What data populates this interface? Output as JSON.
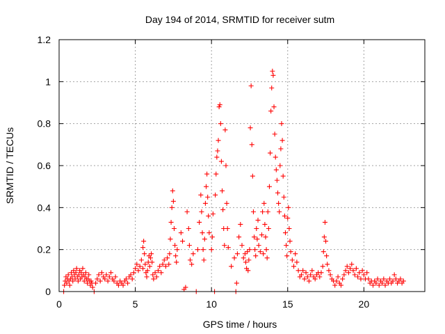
{
  "chart_data": {
    "type": "scatter",
    "title": "Day 194 of 2014, SRMTID for receiver sutm",
    "xlabel": "GPS time / hours",
    "ylabel": "SRMTID / TECUs",
    "xlim": [
      0,
      24
    ],
    "ylim": [
      0,
      1.2
    ],
    "xticks": [
      0,
      5,
      10,
      15,
      20
    ],
    "xtick_labels": [
      "0",
      "5",
      "10",
      "15",
      "20"
    ],
    "yticks": [
      0,
      0.2,
      0.4,
      0.6,
      0.8,
      1,
      1.2
    ],
    "ytick_labels": [
      "0",
      "0.2",
      "0.4",
      "0.6",
      "0.8",
      "1",
      "1.2"
    ],
    "grid": true,
    "marker": "+",
    "color": "#ff0000",
    "series": [
      {
        "name": "SRMTID",
        "points": [
          [
            0.3,
            0.0
          ],
          [
            0.35,
            0.03
          ],
          [
            0.4,
            0.05
          ],
          [
            0.45,
            0.07
          ],
          [
            0.5,
            0.04
          ],
          [
            0.55,
            0.06
          ],
          [
            0.6,
            0.08
          ],
          [
            0.65,
            0.05
          ],
          [
            0.7,
            0.03
          ],
          [
            0.75,
            0.06
          ],
          [
            0.8,
            0.09
          ],
          [
            0.85,
            0.07
          ],
          [
            0.9,
            0.05
          ],
          [
            0.95,
            0.1
          ],
          [
            1.0,
            0.08
          ],
          [
            1.05,
            0.06
          ],
          [
            1.1,
            0.09
          ],
          [
            1.15,
            0.11
          ],
          [
            1.2,
            0.07
          ],
          [
            1.25,
            0.05
          ],
          [
            1.3,
            0.08
          ],
          [
            1.35,
            0.1
          ],
          [
            1.4,
            0.06
          ],
          [
            1.45,
            0.09
          ],
          [
            1.5,
            0.07
          ],
          [
            1.55,
            0.11
          ],
          [
            1.6,
            0.08
          ],
          [
            1.65,
            0.05
          ],
          [
            1.7,
            0.07
          ],
          [
            1.75,
            0.09
          ],
          [
            1.8,
            0.06
          ],
          [
            1.85,
            0.04
          ],
          [
            1.9,
            0.06
          ],
          [
            1.95,
            0.08
          ],
          [
            2.0,
            0.05
          ],
          [
            2.05,
            0.03
          ],
          [
            2.1,
            0.05
          ],
          [
            2.15,
            0.04
          ],
          [
            2.2,
            0.02
          ],
          [
            2.3,
            0.0
          ],
          [
            2.4,
            0.04
          ],
          [
            2.5,
            0.06
          ],
          [
            2.6,
            0.08
          ],
          [
            2.7,
            0.05
          ],
          [
            2.8,
            0.09
          ],
          [
            2.9,
            0.07
          ],
          [
            3.0,
            0.06
          ],
          [
            3.1,
            0.08
          ],
          [
            3.2,
            0.05
          ],
          [
            3.3,
            0.07
          ],
          [
            3.4,
            0.09
          ],
          [
            3.5,
            0.06
          ],
          [
            3.6,
            0.05
          ],
          [
            3.7,
            0.07
          ],
          [
            3.8,
            0.04
          ],
          [
            3.9,
            0.03
          ],
          [
            4.0,
            0.05
          ],
          [
            4.1,
            0.04
          ],
          [
            4.2,
            0.03
          ],
          [
            4.3,
            0.05
          ],
          [
            4.4,
            0.06
          ],
          [
            4.5,
            0.04
          ],
          [
            4.6,
            0.07
          ],
          [
            4.7,
            0.08
          ],
          [
            4.8,
            0.06
          ],
          [
            4.9,
            0.09
          ],
          [
            5.0,
            0.11
          ],
          [
            5.1,
            0.13
          ],
          [
            5.2,
            0.1
          ],
          [
            5.3,
            0.12
          ],
          [
            5.4,
            0.15
          ],
          [
            5.5,
            0.11
          ],
          [
            5.5,
            0.21
          ],
          [
            5.55,
            0.24
          ],
          [
            5.6,
            0.18
          ],
          [
            5.65,
            0.13
          ],
          [
            5.7,
            0.09
          ],
          [
            5.75,
            0.07
          ],
          [
            5.8,
            0.1
          ],
          [
            5.85,
            0.14
          ],
          [
            5.9,
            0.17
          ],
          [
            5.95,
            0.12
          ],
          [
            6.0,
            0.16
          ],
          [
            6.05,
            0.18
          ],
          [
            6.1,
            0.14
          ],
          [
            6.15,
            0.08
          ],
          [
            6.2,
            0.06
          ],
          [
            6.3,
            0.09
          ],
          [
            6.4,
            0.07
          ],
          [
            6.5,
            0.1
          ],
          [
            6.6,
            0.12
          ],
          [
            6.7,
            0.09
          ],
          [
            6.8,
            0.13
          ],
          [
            6.9,
            0.15
          ],
          [
            7.0,
            0.12
          ],
          [
            7.1,
            0.16
          ],
          [
            7.2,
            0.13
          ],
          [
            7.25,
            0.18
          ],
          [
            7.3,
            0.25
          ],
          [
            7.35,
            0.33
          ],
          [
            7.4,
            0.4
          ],
          [
            7.45,
            0.48
          ],
          [
            7.5,
            0.43
          ],
          [
            7.55,
            0.3
          ],
          [
            7.6,
            0.22
          ],
          [
            7.65,
            0.17
          ],
          [
            7.7,
            0.14
          ],
          [
            7.75,
            0.2
          ],
          [
            8.0,
            0.28
          ],
          [
            8.1,
            0.24
          ],
          [
            8.2,
            0.01
          ],
          [
            8.3,
            0.02
          ],
          [
            8.4,
            0.38
          ],
          [
            8.5,
            0.3
          ],
          [
            8.55,
            0.22
          ],
          [
            8.6,
            0.15
          ],
          [
            8.7,
            0.13
          ],
          [
            8.8,
            0.18
          ],
          [
            9.0,
            0.0
          ],
          [
            9.1,
            0.2
          ],
          [
            9.2,
            0.33
          ],
          [
            9.3,
            0.46
          ],
          [
            9.35,
            0.38
          ],
          [
            9.4,
            0.28
          ],
          [
            9.45,
            0.2
          ],
          [
            9.5,
            0.15
          ],
          [
            9.55,
            0.25
          ],
          [
            9.6,
            0.42
          ],
          [
            9.65,
            0.5
          ],
          [
            9.7,
            0.56
          ],
          [
            9.75,
            0.45
          ],
          [
            9.8,
            0.36
          ],
          [
            9.85,
            0.28
          ],
          [
            10.0,
            0.2
          ],
          [
            10.05,
            0.26
          ],
          [
            10.1,
            0.37
          ],
          [
            10.2,
            0.0
          ],
          [
            10.25,
            0.46
          ],
          [
            10.3,
            0.56
          ],
          [
            10.35,
            0.64
          ],
          [
            10.4,
            0.67
          ],
          [
            10.45,
            0.72
          ],
          [
            10.5,
            0.88
          ],
          [
            10.55,
            0.89
          ],
          [
            10.6,
            0.8
          ],
          [
            10.65,
            0.62
          ],
          [
            10.7,
            0.48
          ],
          [
            10.75,
            0.39
          ],
          [
            10.8,
            0.3
          ],
          [
            10.85,
            0.22
          ],
          [
            10.9,
            0.77
          ],
          [
            10.95,
            0.6
          ],
          [
            11.0,
            0.42
          ],
          [
            11.05,
            0.3
          ],
          [
            11.1,
            0.21
          ],
          [
            11.3,
            0.12
          ],
          [
            11.5,
            0.16
          ],
          [
            11.6,
            0.0
          ],
          [
            11.65,
            0.04
          ],
          [
            11.7,
            0.18
          ],
          [
            11.8,
            0.26
          ],
          [
            11.9,
            0.32
          ],
          [
            12.0,
            0.22
          ],
          [
            12.1,
            0.16
          ],
          [
            12.2,
            0.18
          ],
          [
            12.25,
            0.14
          ],
          [
            12.3,
            0.11
          ],
          [
            12.35,
            0.19
          ],
          [
            12.4,
            0.1
          ],
          [
            12.45,
            0.15
          ],
          [
            12.5,
            0.2
          ],
          [
            12.55,
            0.78
          ],
          [
            12.6,
            0.98
          ],
          [
            12.65,
            0.7
          ],
          [
            12.7,
            0.55
          ],
          [
            12.75,
            0.38
          ],
          [
            12.8,
            0.26
          ],
          [
            12.85,
            0.2
          ],
          [
            12.9,
            0.17
          ],
          [
            12.95,
            0.3
          ],
          [
            13.0,
            0.25
          ],
          [
            13.05,
            0.34
          ],
          [
            13.1,
            0.22
          ],
          [
            13.2,
            0.19
          ],
          [
            13.3,
            0.27
          ],
          [
            13.35,
            0.38
          ],
          [
            13.4,
            0.18
          ],
          [
            13.45,
            0.42
          ],
          [
            13.5,
            0.32
          ],
          [
            13.55,
            0.26
          ],
          [
            13.6,
            0.2
          ],
          [
            13.65,
            0.16
          ],
          [
            13.7,
            0.38
          ],
          [
            13.75,
            0.3
          ],
          [
            13.8,
            0.5
          ],
          [
            13.85,
            0.66
          ],
          [
            13.9,
            0.86
          ],
          [
            13.95,
            0.97
          ],
          [
            14.0,
            1.05
          ],
          [
            14.05,
            1.03
          ],
          [
            14.1,
            0.88
          ],
          [
            14.15,
            0.75
          ],
          [
            14.2,
            0.64
          ],
          [
            14.25,
            0.58
          ],
          [
            14.3,
            0.53
          ],
          [
            14.35,
            0.47
          ],
          [
            14.4,
            0.42
          ],
          [
            14.45,
            0.38
          ],
          [
            14.5,
            0.6
          ],
          [
            14.55,
            0.68
          ],
          [
            14.6,
            0.8
          ],
          [
            14.65,
            0.72
          ],
          [
            14.7,
            0.55
          ],
          [
            14.75,
            0.45
          ],
          [
            14.8,
            0.36
          ],
          [
            14.85,
            0.28
          ],
          [
            14.9,
            0.22
          ],
          [
            14.95,
            0.17
          ],
          [
            15.0,
            0.35
          ],
          [
            15.05,
            0.4
          ],
          [
            15.1,
            0.3
          ],
          [
            15.15,
            0.24
          ],
          [
            15.2,
            0.19
          ],
          [
            15.3,
            0.15
          ],
          [
            15.4,
            0.12
          ],
          [
            15.5,
            0.18
          ],
          [
            15.6,
            0.14
          ],
          [
            15.7,
            0.1
          ],
          [
            15.8,
            0.07
          ],
          [
            15.9,
            0.08
          ],
          [
            16.0,
            0.1
          ],
          [
            16.1,
            0.06
          ],
          [
            16.2,
            0.09
          ],
          [
            16.3,
            0.07
          ],
          [
            16.4,
            0.05
          ],
          [
            16.5,
            0.08
          ],
          [
            16.6,
            0.1
          ],
          [
            16.7,
            0.07
          ],
          [
            16.8,
            0.06
          ],
          [
            16.9,
            0.08
          ],
          [
            17.0,
            0.09
          ],
          [
            17.1,
            0.07
          ],
          [
            17.2,
            0.09
          ],
          [
            17.3,
            0.12
          ],
          [
            17.35,
            0.19
          ],
          [
            17.4,
            0.26
          ],
          [
            17.45,
            0.33
          ],
          [
            17.5,
            0.24
          ],
          [
            17.55,
            0.17
          ],
          [
            17.6,
            0.13
          ],
          [
            17.7,
            0.1
          ],
          [
            17.8,
            0.08
          ],
          [
            17.9,
            0.06
          ],
          [
            18.0,
            0.05
          ],
          [
            18.1,
            0.03
          ],
          [
            18.2,
            0.05
          ],
          [
            18.3,
            0.07
          ],
          [
            18.4,
            0.04
          ],
          [
            18.5,
            0.03
          ],
          [
            18.6,
            0.06
          ],
          [
            18.7,
            0.08
          ],
          [
            18.8,
            0.1
          ],
          [
            18.9,
            0.12
          ],
          [
            19.0,
            0.09
          ],
          [
            19.1,
            0.11
          ],
          [
            19.2,
            0.13
          ],
          [
            19.3,
            0.1
          ],
          [
            19.4,
            0.08
          ],
          [
            19.5,
            0.11
          ],
          [
            19.6,
            0.07
          ],
          [
            19.7,
            0.09
          ],
          [
            19.8,
            0.06
          ],
          [
            19.9,
            0.1
          ],
          [
            20.0,
            0.08
          ],
          [
            20.1,
            0.06
          ],
          [
            20.2,
            0.09
          ],
          [
            20.3,
            0.06
          ],
          [
            20.4,
            0.04
          ],
          [
            20.5,
            0.05
          ],
          [
            20.6,
            0.03
          ],
          [
            20.7,
            0.05
          ],
          [
            20.8,
            0.04
          ],
          [
            20.9,
            0.06
          ],
          [
            21.0,
            0.03
          ],
          [
            21.1,
            0.05
          ],
          [
            21.2,
            0.04
          ],
          [
            21.3,
            0.06
          ],
          [
            21.4,
            0.03
          ],
          [
            21.5,
            0.05
          ],
          [
            21.6,
            0.04
          ],
          [
            21.7,
            0.06
          ],
          [
            21.8,
            0.04
          ],
          [
            21.9,
            0.05
          ],
          [
            22.0,
            0.08
          ],
          [
            22.1,
            0.06
          ],
          [
            22.2,
            0.04
          ],
          [
            22.3,
            0.05
          ],
          [
            22.4,
            0.06
          ],
          [
            22.5,
            0.04
          ],
          [
            22.6,
            0.05
          ]
        ]
      }
    ]
  }
}
